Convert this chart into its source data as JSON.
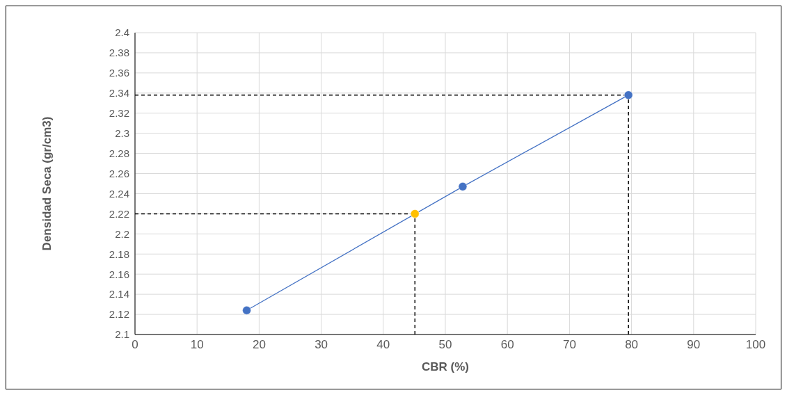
{
  "chart_data": {
    "type": "line",
    "xlabel": "CBR  (%)",
    "ylabel": "Densidad Seca (gr/cm3)",
    "xlim": [
      0,
      100
    ],
    "xticks": [
      0,
      10,
      20,
      30,
      40,
      50,
      60,
      70,
      80,
      90,
      100
    ],
    "ylim": [
      2.1,
      2.4
    ],
    "yticks": [
      2.1,
      2.12,
      2.14,
      2.16,
      2.18,
      2.2,
      2.22,
      2.24,
      2.26,
      2.28,
      2.3,
      2.32,
      2.34,
      2.36,
      2.38,
      2.4
    ],
    "grid": true,
    "marker": "circle",
    "line_style": "solid",
    "series": [
      {
        "color": "#000000",
        "line_style": "dashed",
        "marker": "none",
        "x": [
          0,
          79.5
        ],
        "values": [
          2.338,
          2.338
        ]
      },
      {
        "color": "#000000",
        "line_style": "dashed",
        "marker": "none",
        "x": [
          79.5,
          79.5
        ],
        "values": [
          2.1,
          2.338
        ]
      },
      {
        "color": "#000000",
        "line_style": "dashed",
        "marker": "none",
        "x": [
          0,
          45.1
        ],
        "values": [
          2.22,
          2.22
        ]
      },
      {
        "color": "#000000",
        "line_style": "dashed",
        "marker": "none",
        "x": [
          45.1,
          45.1
        ],
        "values": [
          2.1,
          2.22
        ]
      },
      {
        "color": "#4472c4",
        "x": [
          18.0,
          52.8,
          79.5
        ],
        "values": [
          2.124,
          2.247,
          2.338
        ]
      },
      {
        "type": "scatter",
        "color": "#ffc000",
        "x": [
          45.1
        ],
        "values": [
          2.22
        ]
      }
    ]
  }
}
